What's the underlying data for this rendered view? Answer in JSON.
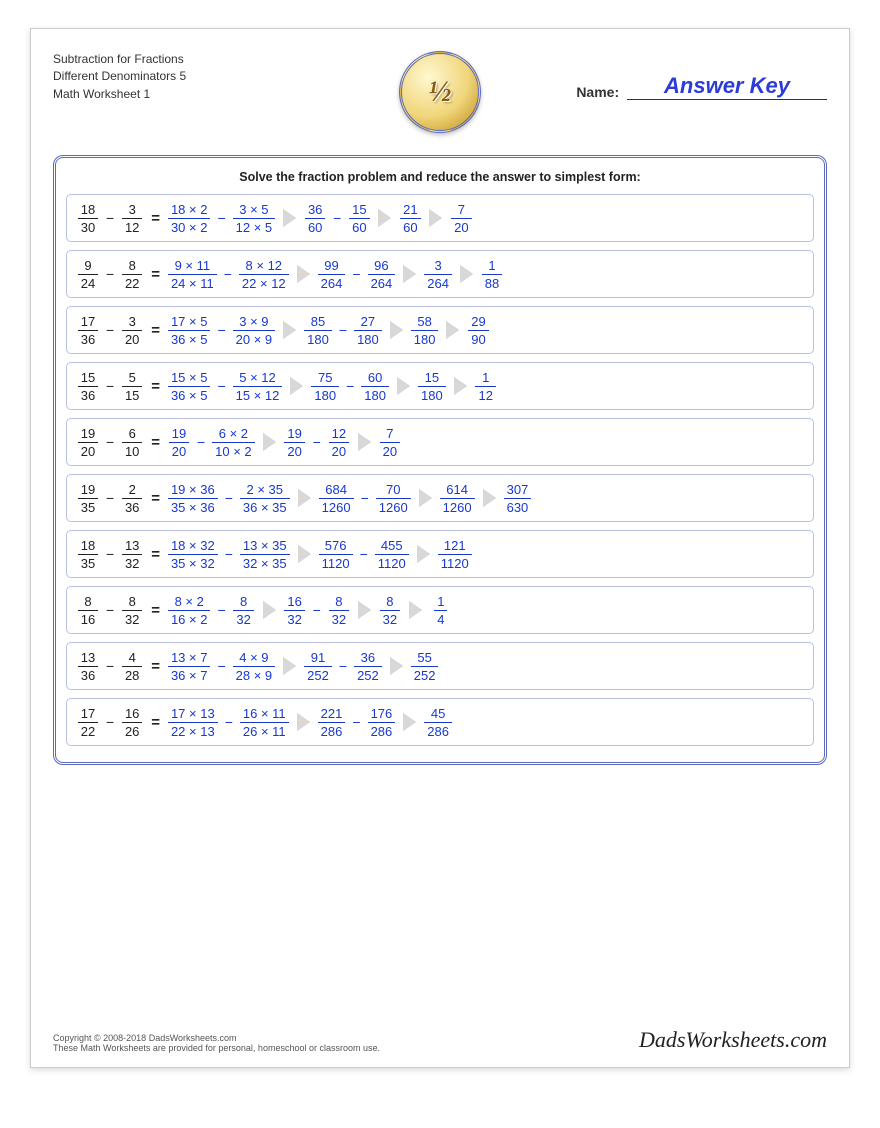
{
  "header": {
    "title_line1": "Subtraction for Fractions",
    "title_line2": "Different Denominators 5",
    "title_line3": "Math Worksheet 1",
    "logo_text": "½",
    "name_label": "Name:",
    "answer_key": "Answer Key"
  },
  "instruction": "Solve the fraction problem and reduce the answer to simplest form:",
  "colors": {
    "problem_fg": "#222222",
    "answer_fg": "#1838d0",
    "box_border": "#5b6bbf",
    "row_border": "#b8bfe0",
    "arrow": "#d8d8d8"
  },
  "problems": [
    {
      "lhs": [
        {
          "n": "18",
          "d": "30"
        },
        {
          "n": "3",
          "d": "12"
        }
      ],
      "step1": [
        {
          "n": "18 × 2",
          "d": "30 × 2"
        },
        {
          "n": "3 × 5",
          "d": "12 × 5"
        }
      ],
      "step2": [
        {
          "n": "36",
          "d": "60"
        },
        {
          "n": "15",
          "d": "60"
        }
      ],
      "step3": {
        "n": "21",
        "d": "60"
      },
      "final": {
        "n": "7",
        "d": "20"
      }
    },
    {
      "lhs": [
        {
          "n": "9",
          "d": "24"
        },
        {
          "n": "8",
          "d": "22"
        }
      ],
      "step1": [
        {
          "n": "9 × 11",
          "d": "24 × 11"
        },
        {
          "n": "8 × 12",
          "d": "22 × 12"
        }
      ],
      "step2": [
        {
          "n": "99",
          "d": "264"
        },
        {
          "n": "96",
          "d": "264"
        }
      ],
      "step3": {
        "n": "3",
        "d": "264"
      },
      "final": {
        "n": "1",
        "d": "88"
      }
    },
    {
      "lhs": [
        {
          "n": "17",
          "d": "36"
        },
        {
          "n": "3",
          "d": "20"
        }
      ],
      "step1": [
        {
          "n": "17 × 5",
          "d": "36 × 5"
        },
        {
          "n": "3 × 9",
          "d": "20 × 9"
        }
      ],
      "step2": [
        {
          "n": "85",
          "d": "180"
        },
        {
          "n": "27",
          "d": "180"
        }
      ],
      "step3": {
        "n": "58",
        "d": "180"
      },
      "final": {
        "n": "29",
        "d": "90"
      }
    },
    {
      "lhs": [
        {
          "n": "15",
          "d": "36"
        },
        {
          "n": "5",
          "d": "15"
        }
      ],
      "step1": [
        {
          "n": "15 × 5",
          "d": "36 × 5"
        },
        {
          "n": "5 × 12",
          "d": "15 × 12"
        }
      ],
      "step2": [
        {
          "n": "75",
          "d": "180"
        },
        {
          "n": "60",
          "d": "180"
        }
      ],
      "step3": {
        "n": "15",
        "d": "180"
      },
      "final": {
        "n": "1",
        "d": "12"
      }
    },
    {
      "lhs": [
        {
          "n": "19",
          "d": "20"
        },
        {
          "n": "6",
          "d": "10"
        }
      ],
      "step1": [
        {
          "n": "19",
          "d": "20"
        },
        {
          "n": "6 × 2",
          "d": "10 × 2"
        }
      ],
      "step2": [
        {
          "n": "19",
          "d": "20"
        },
        {
          "n": "12",
          "d": "20"
        }
      ],
      "step3": {
        "n": "7",
        "d": "20"
      },
      "final": null
    },
    {
      "lhs": [
        {
          "n": "19",
          "d": "35"
        },
        {
          "n": "2",
          "d": "36"
        }
      ],
      "step1": [
        {
          "n": "19 × 36",
          "d": "35 × 36"
        },
        {
          "n": "2 × 35",
          "d": "36 × 35"
        }
      ],
      "step2": [
        {
          "n": "684",
          "d": "1260"
        },
        {
          "n": "70",
          "d": "1260"
        }
      ],
      "step3": {
        "n": "614",
        "d": "1260"
      },
      "final": {
        "n": "307",
        "d": "630"
      }
    },
    {
      "lhs": [
        {
          "n": "18",
          "d": "35"
        },
        {
          "n": "13",
          "d": "32"
        }
      ],
      "step1": [
        {
          "n": "18 × 32",
          "d": "35 × 32"
        },
        {
          "n": "13 × 35",
          "d": "32 × 35"
        }
      ],
      "step2": [
        {
          "n": "576",
          "d": "1120"
        },
        {
          "n": "455",
          "d": "1120"
        }
      ],
      "step3": {
        "n": "121",
        "d": "1120"
      },
      "final": null
    },
    {
      "lhs": [
        {
          "n": "8",
          "d": "16"
        },
        {
          "n": "8",
          "d": "32"
        }
      ],
      "step1": [
        {
          "n": "8 × 2",
          "d": "16 × 2"
        },
        {
          "n": "8",
          "d": "32"
        }
      ],
      "step2": [
        {
          "n": "16",
          "d": "32"
        },
        {
          "n": "8",
          "d": "32"
        }
      ],
      "step3": {
        "n": "8",
        "d": "32"
      },
      "final": {
        "n": "1",
        "d": "4"
      }
    },
    {
      "lhs": [
        {
          "n": "13",
          "d": "36"
        },
        {
          "n": "4",
          "d": "28"
        }
      ],
      "step1": [
        {
          "n": "13 × 7",
          "d": "36 × 7"
        },
        {
          "n": "4 × 9",
          "d": "28 × 9"
        }
      ],
      "step2": [
        {
          "n": "91",
          "d": "252"
        },
        {
          "n": "36",
          "d": "252"
        }
      ],
      "step3": {
        "n": "55",
        "d": "252"
      },
      "final": null
    },
    {
      "lhs": [
        {
          "n": "17",
          "d": "22"
        },
        {
          "n": "16",
          "d": "26"
        }
      ],
      "step1": [
        {
          "n": "17 × 13",
          "d": "22 × 13"
        },
        {
          "n": "16 × 11",
          "d": "26 × 11"
        }
      ],
      "step2": [
        {
          "n": "221",
          "d": "286"
        },
        {
          "n": "176",
          "d": "286"
        }
      ],
      "step3": {
        "n": "45",
        "d": "286"
      },
      "final": null
    }
  ],
  "footer": {
    "copyright": "Copyright © 2008-2018 DadsWorksheets.com",
    "note": "These Math Worksheets are provided for personal, homeschool or classroom use.",
    "brand": "DadsWorksheets.com"
  }
}
